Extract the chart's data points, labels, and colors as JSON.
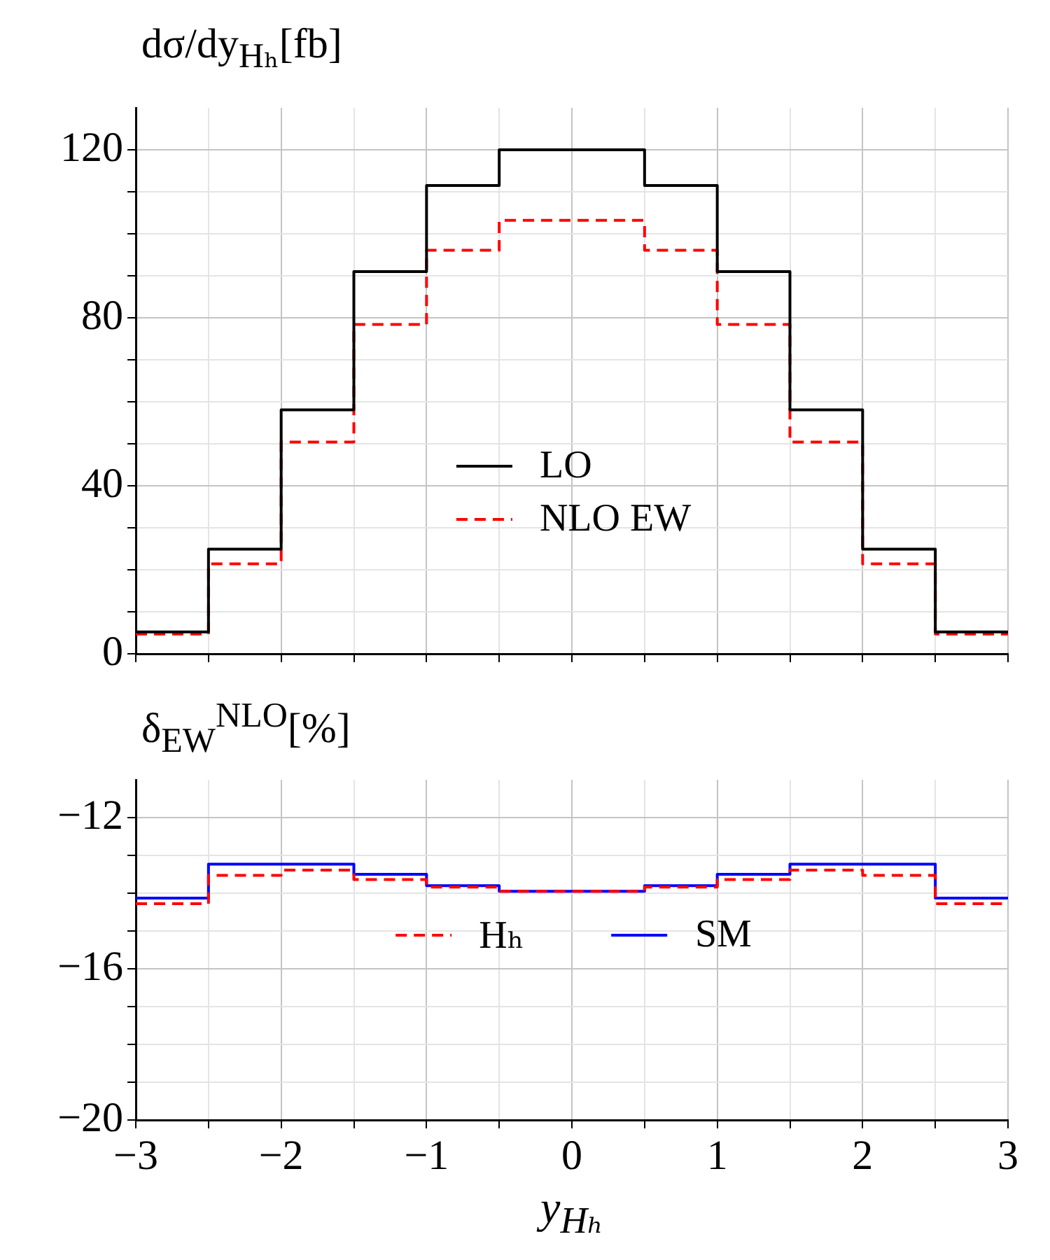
{
  "chart_data": [
    {
      "type": "histogram",
      "title": "dσ/dy$_{Hₕ}$[fb]",
      "bins": [
        -3,
        -2.5,
        -2,
        -1.5,
        -1,
        -0.5,
        0,
        0.5,
        1,
        1.5,
        2,
        2.5,
        3
      ],
      "series": [
        {
          "name": "LO",
          "color": "#000000",
          "line_style": "solid",
          "values": [
            5.2,
            24.9,
            58.1,
            91,
            111.5,
            120,
            120,
            111.5,
            91,
            58.1,
            24.9,
            5.2
          ]
        },
        {
          "name": "NLO EW",
          "color": "#ff0000",
          "line_style": "dashed",
          "values": [
            4.7,
            21.4,
            50.4,
            78.4,
            96.1,
            103.2,
            103.2,
            96.1,
            78.4,
            50.4,
            21.4,
            4.7
          ]
        }
      ],
      "xlim": [
        -3,
        3
      ],
      "xticks": [
        -3,
        {
          "value": -2.5,
          "label": null
        },
        -2,
        {
          "value": -1.5,
          "label": null
        },
        -1,
        {
          "value": -0.5,
          "label": null
        },
        0,
        {
          "value": 0.5,
          "label": null
        },
        1,
        {
          "value": 1.5,
          "label": null
        },
        2,
        {
          "value": 2.5,
          "label": null
        },
        3
      ],
      "ylim": [
        0,
        130
      ],
      "yticks": [
        0,
        {
          "value": 10,
          "label": null
        },
        {
          "value": 20,
          "label": null
        },
        {
          "value": 30,
          "label": null
        },
        40,
        {
          "value": 50,
          "label": null
        },
        {
          "value": 60,
          "label": null
        },
        {
          "value": 70,
          "label": null
        },
        80,
        {
          "value": 90,
          "label": null
        },
        {
          "value": 100,
          "label": null
        },
        {
          "value": 110,
          "label": null
        },
        120
      ],
      "grid": true,
      "legend": "bottom",
      "marker": "none",
      "tick_labels": "y"
    },
    {
      "type": "histogram",
      "ylabel": "δ$_{EW}$$^{NLO}$[%]",
      "xlabel": "y$_{Hₕ}$",
      "bins": [
        -3,
        -2.5,
        -2,
        -1.5,
        -1,
        -0.5,
        0,
        0.5,
        1,
        1.5,
        2,
        2.5,
        3
      ],
      "series": [
        {
          "name": "Hₕ",
          "color": "#ff0000",
          "line_style": "dashed",
          "values": [
            -14.28,
            -13.53,
            -13.39,
            -13.64,
            -13.84,
            -13.95,
            -13.95,
            -13.84,
            -13.64,
            -13.39,
            -13.53,
            -14.28
          ]
        },
        {
          "name": "SM",
          "color": "#0000ff",
          "line_style": "solid",
          "values": [
            -14.13,
            -13.23,
            -13.23,
            -13.5,
            -13.8,
            -13.95,
            -13.95,
            -13.8,
            -13.5,
            -13.23,
            -13.23,
            -14.13
          ]
        }
      ],
      "xlim": [
        -3,
        3
      ],
      "xticks": [
        -3,
        {
          "value": -2.5,
          "label": null
        },
        -2,
        {
          "value": -1.5,
          "label": null
        },
        -1,
        {
          "value": -0.5,
          "label": null
        },
        0,
        {
          "value": 0.5,
          "label": null
        },
        1,
        {
          "value": 1.5,
          "label": null
        },
        2,
        {
          "value": 2.5,
          "label": null
        },
        3
      ],
      "ylim": [
        -20,
        -11
      ],
      "yticks": [
        -20,
        {
          "value": -19,
          "label": null
        },
        {
          "value": -18,
          "label": null
        },
        {
          "value": -17,
          "label": null
        },
        -16,
        {
          "value": -15,
          "label": null
        },
        {
          "value": -14,
          "label": null
        },
        {
          "value": -13,
          "label": null
        },
        -12
      ],
      "grid": true,
      "legend": "center",
      "marker": "none"
    }
  ]
}
